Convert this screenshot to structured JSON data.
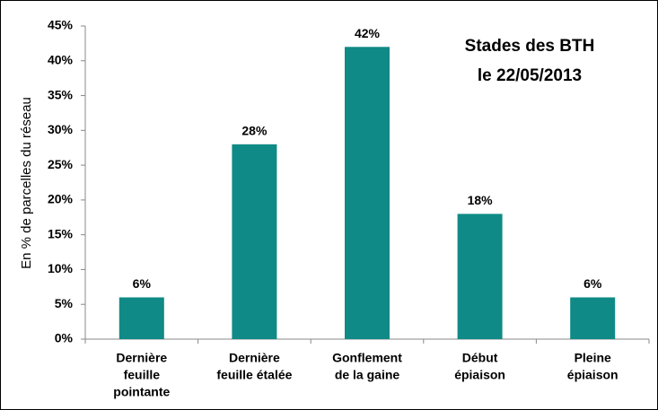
{
  "chart_data": {
    "type": "bar",
    "title": [
      "Stades des BTH",
      "le 22/05/2013"
    ],
    "y_label": "En % de parcelles du réseau",
    "categories": [
      [
        "Dernière",
        "feuille",
        "pointante"
      ],
      [
        "Dernière",
        "feuille étalée"
      ],
      [
        "Gonflement",
        "de la gaine"
      ],
      [
        "Début",
        "épiaison"
      ],
      [
        "Pleine",
        "épiaison"
      ]
    ],
    "values": [
      6,
      28,
      42,
      18,
      6
    ],
    "value_labels": [
      "6%",
      "28%",
      "42%",
      "18%",
      "6%"
    ],
    "color": "#0f8a86",
    "ylim": [
      0,
      45
    ],
    "yticks": [
      {
        "value": 0,
        "label": "0%"
      },
      {
        "value": 5,
        "label": "5%"
      },
      {
        "value": 10,
        "label": "10%"
      },
      {
        "value": 15,
        "label": "15%"
      },
      {
        "value": 20,
        "label": "20%"
      },
      {
        "value": 25,
        "label": "25%"
      },
      {
        "value": 30,
        "label": "30%"
      },
      {
        "value": 35,
        "label": "35%"
      },
      {
        "value": 40,
        "label": "40%"
      },
      {
        "value": 45,
        "label": "45%"
      }
    ],
    "grid": false
  }
}
